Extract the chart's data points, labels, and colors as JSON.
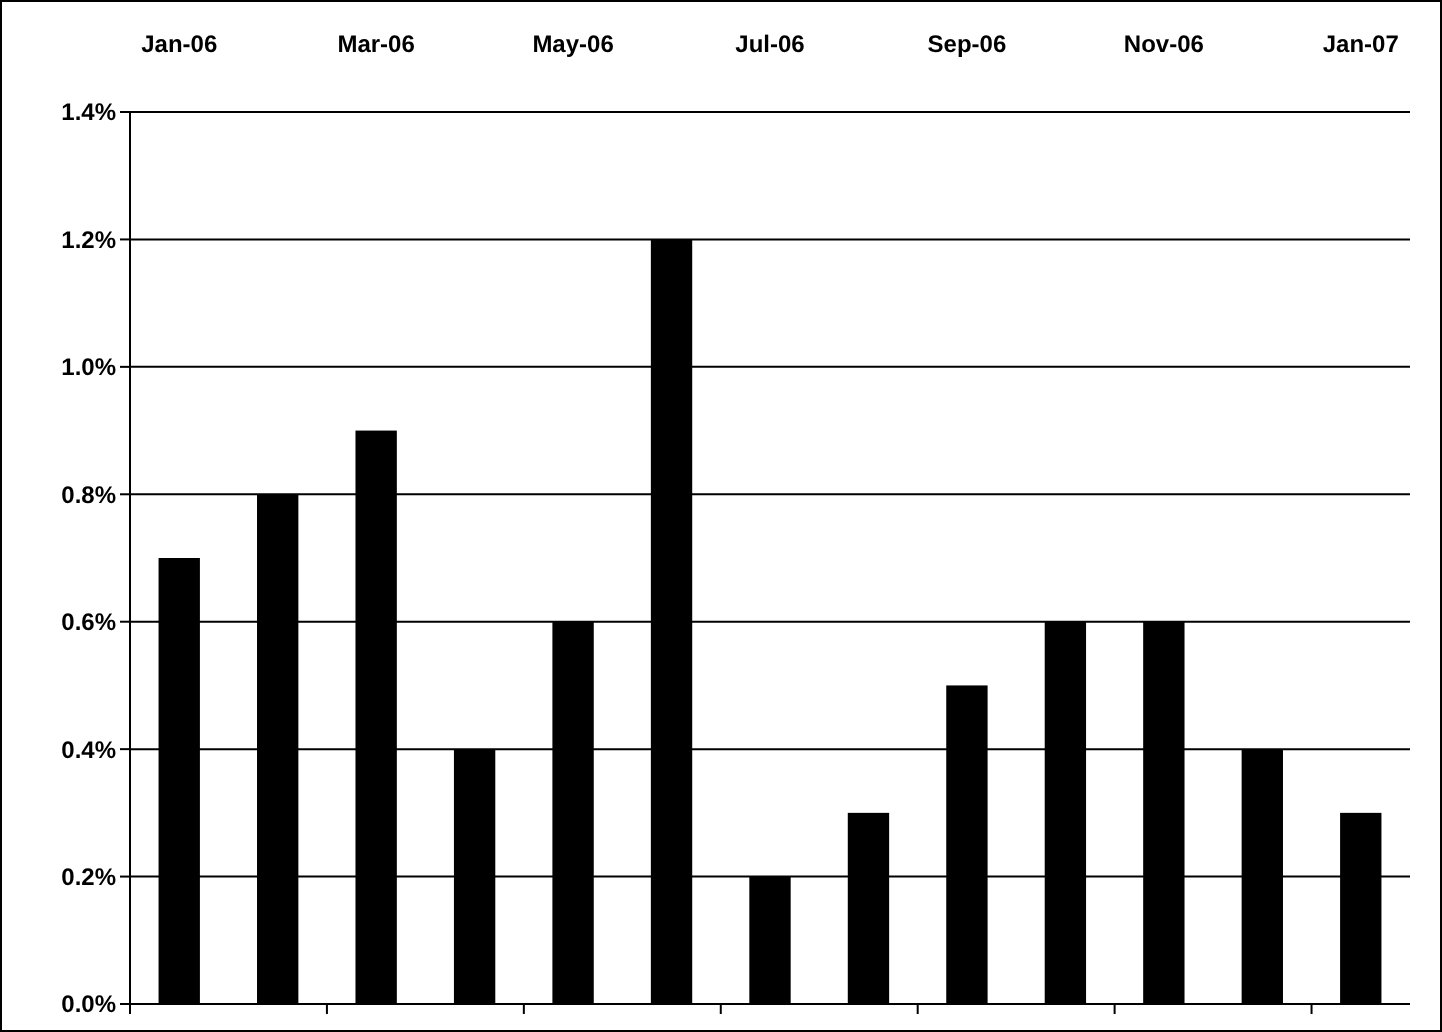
{
  "chart_data": {
    "type": "bar",
    "categories": [
      "Jan-06",
      null,
      "Mar-06",
      null,
      "May-06",
      null,
      "Jul-06",
      null,
      "Sep-06",
      null,
      "Nov-06",
      null,
      "Jan-07"
    ],
    "values": [
      0.7,
      0.8,
      0.9,
      0.4,
      0.6,
      1.2,
      0.2,
      0.3,
      0.5,
      0.6,
      0.6,
      0.4,
      0.3
    ],
    "color": "#000000",
    "ylim": [
      0,
      1.4
    ],
    "yticks": [
      {
        "value": 0,
        "label": "0.0%"
      },
      {
        "value": 0.2,
        "label": "0.2%"
      },
      {
        "value": 0.4,
        "label": "0.4%"
      },
      {
        "value": 0.6,
        "label": "0.6%"
      },
      {
        "value": 0.8,
        "label": "0.8%"
      },
      {
        "value": 1.0,
        "label": "1.0%"
      },
      {
        "value": 1.2,
        "label": "1.2%"
      },
      {
        "value": 1.4,
        "label": "1.4%"
      }
    ],
    "grid": "y"
  }
}
